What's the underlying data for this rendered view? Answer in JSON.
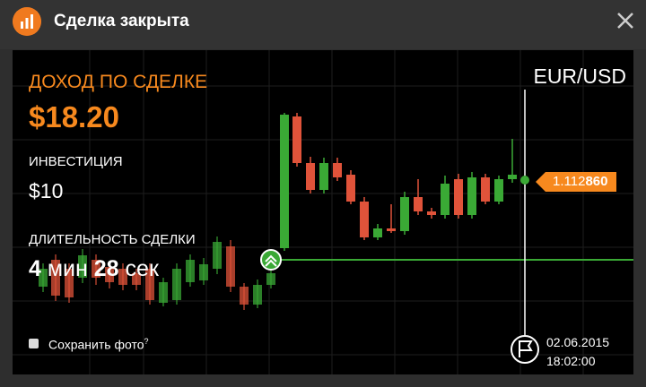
{
  "header": {
    "title": "Сделка закрыта"
  },
  "deal": {
    "income_label": "ДОХОД ПО СДЕЛКЕ",
    "income": "$18.20",
    "investment_label": "ИНВЕСТИЦИЯ",
    "investment": "$10",
    "duration_label": "ДЛИТЕЛЬНОСТЬ СДЕЛКИ",
    "duration": {
      "minutes": "4",
      "minutes_unit": "мин",
      "seconds": "28",
      "seconds_unit": "сек"
    }
  },
  "save_photo": {
    "label": "Сохранить фото",
    "help": "?"
  },
  "chart": {
    "pair": "EUR/USD",
    "price": {
      "main": "1.112",
      "pips": "860"
    },
    "close_date": "02.06.2015",
    "close_time": "18:02:00"
  }
}
